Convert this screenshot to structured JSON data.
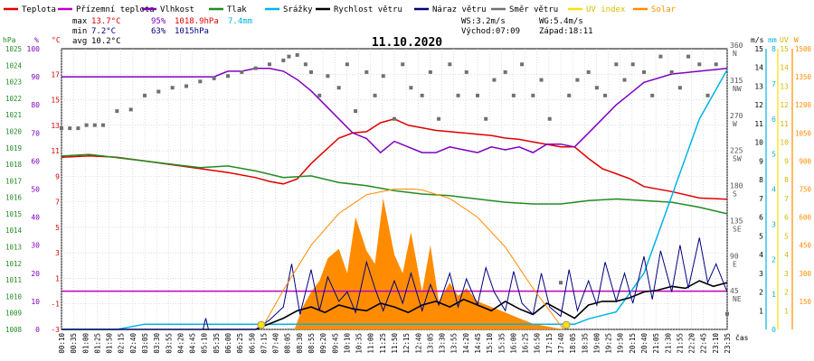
{
  "legend": [
    {
      "label": "Teplota",
      "color": "#e00000"
    },
    {
      "label": "Přízemní teplota",
      "color": "#c000c0"
    },
    {
      "label": "Vlhkost",
      "color": "#8000c0"
    },
    {
      "label": "Tlak",
      "color": "#228b22"
    },
    {
      "label": "Srážky",
      "color": "#00b4e6"
    },
    {
      "label": "Rychlost větru",
      "color": "#000000"
    },
    {
      "label": "Náraz větru",
      "color": "#000080"
    },
    {
      "label": "Směr větru",
      "color": "#707070"
    },
    {
      "label": "UV index",
      "color": "#ffe000"
    },
    {
      "label": "Solar",
      "color": "#ff8c00"
    }
  ],
  "stats": {
    "max_label": "max",
    "max_temp": "13.7°C",
    "max_hum": "95%",
    "max_press": "1018.9hPa",
    "max_rain": "7.4mm",
    "min_label": "min",
    "min_temp": "7.2°C",
    "min_hum": "63%",
    "min_press": "1015hPa",
    "avg_label": "avg",
    "avg_temp": "10.2°C",
    "ws": "WS:3.2m/s",
    "wg": "WG:5.4m/s",
    "sunrise": "Východ:07:09",
    "sunset": "Západ:18:11"
  },
  "colors": {
    "temp": "#e00000",
    "dew": "#c000c0",
    "hum": "#8000c0",
    "press": "#228b22",
    "rain": "#00b4e6",
    "wind": "#000000",
    "gust": "#000080",
    "dir": "#707070",
    "uv": "#ffe000",
    "solar": "#ff8c00",
    "grid": "#c8c8c8"
  },
  "chart_data": {
    "type": "line",
    "title": "11.10.2020",
    "xlabel": "čas",
    "x_ticks": [
      "00:10",
      "00:35",
      "01:00",
      "01:25",
      "01:50",
      "02:15",
      "02:40",
      "03:05",
      "03:30",
      "03:55",
      "04:20",
      "04:45",
      "05:10",
      "05:35",
      "06:00",
      "06:25",
      "06:50",
      "07:15",
      "07:40",
      "08:05",
      "08:30",
      "08:55",
      "09:20",
      "09:45",
      "10:10",
      "10:35",
      "11:00",
      "11:25",
      "11:50",
      "12:15",
      "12:40",
      "13:05",
      "13:30",
      "13:55",
      "14:20",
      "14:45",
      "15:10",
      "15:35",
      "16:00",
      "16:25",
      "16:50",
      "17:15",
      "17:40",
      "18:05",
      "18:35",
      "19:00",
      "19:25",
      "19:50",
      "20:15",
      "20:40",
      "21:05",
      "21:30",
      "21:55",
      "22:20",
      "22:45",
      "23:10",
      "23:35"
    ],
    "x_range_hours": [
      0,
      24
    ],
    "axes": {
      "pressure": {
        "label": "hPa",
        "range": [
          1008,
          1025
        ],
        "ticks": [
          1008,
          1009,
          1010,
          1011,
          1012,
          1013,
          1014,
          1015,
          1016,
          1017,
          1018,
          1019,
          1020,
          1021,
          1022,
          1023,
          1024,
          1025
        ]
      },
      "humidity": {
        "label": "%",
        "range": [
          0,
          100
        ],
        "ticks": [
          0,
          10,
          20,
          30,
          40,
          50,
          60,
          70,
          80,
          90,
          100
        ]
      },
      "temperature": {
        "label": "°C",
        "range": [
          -3,
          19
        ],
        "ticks": [
          -3,
          -1,
          1,
          3,
          5,
          7,
          9,
          11,
          13,
          15,
          17
        ]
      },
      "direction": {
        "ticks": [
          "45 NE",
          "90 E",
          "135 SE",
          "180 S",
          "225 SW",
          "270 W",
          "315 NW",
          "360 N"
        ],
        "range": [
          0,
          360
        ]
      },
      "wind": {
        "label": "m/s",
        "range": [
          0,
          15
        ],
        "ticks": [
          1,
          2,
          3,
          4,
          5,
          6,
          7,
          8,
          9,
          10,
          11,
          12,
          13,
          14,
          15
        ]
      },
      "rain": {
        "label": "mm",
        "range": [
          0,
          8
        ],
        "ticks": [
          0,
          1,
          2,
          3,
          4,
          5,
          6,
          7,
          8
        ]
      },
      "uv": {
        "label": "UV",
        "range": [
          0,
          15
        ],
        "ticks": [
          1,
          2,
          3,
          4,
          5,
          6,
          7,
          8,
          9,
          10,
          11,
          12,
          13,
          14,
          15
        ]
      },
      "solar": {
        "label": "W",
        "range": [
          0,
          1500
        ],
        "ticks": [
          150,
          300,
          450,
          600,
          750,
          900,
          1050,
          1200,
          1350,
          1500
        ]
      }
    },
    "series": [
      {
        "name": "Teplota",
        "axis": "temperature",
        "x": [
          0,
          1,
          2,
          3,
          4,
          5,
          6,
          7,
          7.5,
          8,
          8.5,
          9,
          9.5,
          10,
          10.5,
          11,
          11.5,
          12,
          12.5,
          13,
          13.5,
          14,
          14.5,
          15,
          15.5,
          16,
          16.5,
          17,
          17.5,
          18,
          18.5,
          19,
          19.5,
          20,
          20.5,
          21,
          22,
          23,
          24
        ],
        "y": [
          10.5,
          10.6,
          10.5,
          10.2,
          9.9,
          9.6,
          9.3,
          8.9,
          8.6,
          8.4,
          8.8,
          10.0,
          11.0,
          12.0,
          12.4,
          12.5,
          13.2,
          13.5,
          13.0,
          12.8,
          12.6,
          12.5,
          12.4,
          12.3,
          12.2,
          12.0,
          11.9,
          11.7,
          11.5,
          11.3,
          11.3,
          10.4,
          9.6,
          9.2,
          8.8,
          8.2,
          7.8,
          7.3,
          7.2
        ]
      },
      {
        "name": "Přízemní teplota",
        "axis": "temperature",
        "x": [
          0,
          24
        ],
        "y": [
          0,
          0
        ]
      },
      {
        "name": "Vlhkost",
        "axis": "humidity",
        "x": [
          0,
          1,
          2,
          3,
          4,
          5,
          5.5,
          6,
          6.5,
          7,
          7.5,
          8,
          8.5,
          9,
          9.5,
          10,
          10.5,
          11,
          11.5,
          12,
          12.5,
          13,
          13.5,
          14,
          14.5,
          15,
          15.5,
          16,
          16.5,
          17,
          17.5,
          18,
          18.5,
          19,
          19.5,
          20,
          20.5,
          21,
          22,
          23,
          24
        ],
        "y": [
          90,
          90,
          90,
          90,
          90,
          90,
          90,
          92,
          92,
          93,
          93,
          92,
          89,
          85,
          80,
          75,
          70,
          68,
          63,
          67,
          65,
          63,
          63,
          65,
          64,
          63,
          65,
          64,
          65,
          63,
          66,
          66,
          65,
          70,
          75,
          80,
          84,
          88,
          91,
          92,
          93
        ]
      },
      {
        "name": "Tlak",
        "axis": "pressure",
        "x": [
          0,
          1,
          2,
          3,
          4,
          5,
          6,
          7,
          8,
          9,
          10,
          11,
          12,
          13,
          14,
          15,
          16,
          17,
          18,
          19,
          20,
          21,
          22,
          23,
          24
        ],
        "y": [
          1018.5,
          1018.6,
          1018.4,
          1018.2,
          1018.0,
          1017.8,
          1017.9,
          1017.6,
          1017.2,
          1017.3,
          1016.9,
          1016.7,
          1016.4,
          1016.2,
          1016.1,
          1015.9,
          1015.7,
          1015.6,
          1015.6,
          1015.8,
          1015.9,
          1015.8,
          1015.7,
          1015.4,
          1015.0
        ]
      },
      {
        "name": "Srážky",
        "axis": "rain",
        "x": [
          0,
          2,
          3,
          4,
          18,
          18.5,
          19,
          20,
          21,
          22,
          23,
          24
        ],
        "y": [
          0,
          0,
          0.15,
          0.15,
          0.15,
          0.15,
          0.3,
          0.5,
          1.6,
          3.8,
          6.0,
          7.4
        ]
      },
      {
        "name": "Rychlost větru",
        "axis": "wind",
        "x": [
          0,
          7,
          7.5,
          8,
          8.5,
          9,
          9.5,
          10,
          10.5,
          11,
          11.5,
          12,
          12.5,
          13,
          13.5,
          14,
          14.5,
          15,
          15.5,
          16,
          16.5,
          17,
          17.5,
          18,
          18.5,
          19,
          19.5,
          20,
          20.5,
          21,
          21.5,
          22,
          22.5,
          23,
          23.5,
          24
        ],
        "y": [
          0,
          0,
          0.3,
          0.6,
          1.0,
          1.2,
          0.9,
          1.3,
          1.1,
          1.0,
          1.4,
          1.2,
          0.9,
          1.3,
          1.5,
          1.2,
          1.6,
          1.3,
          1.0,
          1.5,
          1.1,
          0.8,
          1.4,
          1.0,
          0.6,
          1.3,
          1.5,
          1.5,
          1.7,
          2.0,
          2.1,
          2.3,
          2.2,
          2.6,
          2.3,
          2.5
        ]
      },
      {
        "name": "Náraz větru",
        "axis": "wind",
        "x": [
          0,
          5.1,
          5.2,
          5.3,
          7,
          7.5,
          8,
          8.3,
          8.6,
          9,
          9.3,
          9.6,
          10,
          10.3,
          10.6,
          11,
          11.3,
          11.6,
          12,
          12.3,
          12.6,
          13,
          13.3,
          13.6,
          14,
          14.3,
          14.6,
          15,
          15.3,
          15.6,
          16,
          16.3,
          16.6,
          17,
          17.3,
          17.6,
          18,
          18.3,
          18.6,
          19,
          19.3,
          19.6,
          20,
          20.3,
          20.6,
          21,
          21.3,
          21.6,
          22,
          22.3,
          22.6,
          23,
          23.3,
          23.6,
          24
        ],
        "y": [
          0,
          0,
          0.6,
          0,
          0,
          0.5,
          1.2,
          3.5,
          0.8,
          3.2,
          1.0,
          2.8,
          1.5,
          2.0,
          0.9,
          3.6,
          2.2,
          1.0,
          2.6,
          1.4,
          3.0,
          1.0,
          2.4,
          1.3,
          3.0,
          1.2,
          2.7,
          1.3,
          3.3,
          2.0,
          1.0,
          3.1,
          1.4,
          0.8,
          3.0,
          1.2,
          0.7,
          3.2,
          1.0,
          2.6,
          1.3,
          3.6,
          1.5,
          3.0,
          1.4,
          3.9,
          1.6,
          4.2,
          2.0,
          4.5,
          2.2,
          4.9,
          2.5,
          3.5,
          2.0
        ]
      },
      {
        "name": "Solar",
        "axis": "solar",
        "x": [
          7.2,
          8.4,
          8.7,
          9,
          9.3,
          9.6,
          10,
          10.3,
          10.6,
          11,
          11.3,
          11.6,
          12,
          12.3,
          12.6,
          13,
          13.3,
          13.6,
          14,
          14.3,
          14.6,
          15,
          15.5,
          16,
          16.5,
          17,
          18.1
        ],
        "y": [
          0,
          0,
          120,
          200,
          260,
          380,
          430,
          300,
          600,
          420,
          350,
          700,
          400,
          300,
          520,
          200,
          450,
          150,
          250,
          180,
          220,
          150,
          120,
          90,
          60,
          30,
          0
        ]
      },
      {
        "name": "Solar max",
        "axis": "solar",
        "x": [
          7.2,
          8,
          9,
          10,
          11,
          12,
          12.7,
          13,
          14,
          15,
          16,
          17,
          18.1
        ],
        "y": [
          0,
          210,
          450,
          620,
          720,
          750,
          750,
          745,
          700,
          600,
          440,
          220,
          0
        ]
      }
    ],
    "wind_direction_deg": {
      "x": [
        0,
        0.3,
        0.6,
        0.9,
        1.2,
        1.5,
        2,
        2.5,
        3,
        3.5,
        4,
        4.5,
        5,
        5.5,
        6,
        6.5,
        7,
        7.5,
        8,
        8.2,
        8.5,
        8.8,
        9,
        9.3,
        9.6,
        10,
        10.3,
        10.6,
        11,
        11.3,
        11.6,
        12,
        12.3,
        12.6,
        13,
        13.3,
        13.6,
        14,
        14.3,
        14.6,
        15,
        15.3,
        15.6,
        16,
        16.3,
        16.6,
        17,
        17.3,
        17.6,
        18,
        18.3,
        18.6,
        19,
        19.3,
        19.6,
        20,
        20.3,
        20.6,
        21,
        21.3,
        21.6,
        22,
        22.3,
        22.6,
        23,
        23.3,
        23.6,
        24
      ],
      "y": [
        258,
        258,
        258,
        262,
        262,
        262,
        280,
        282,
        300,
        305,
        310,
        312,
        318,
        322,
        325,
        330,
        335,
        340,
        345,
        350,
        352,
        340,
        330,
        300,
        325,
        310,
        340,
        280,
        330,
        300,
        325,
        270,
        340,
        310,
        300,
        330,
        270,
        340,
        300,
        330,
        300,
        270,
        320,
        330,
        300,
        340,
        300,
        320,
        270,
        60,
        300,
        320,
        330,
        310,
        300,
        340,
        320,
        340,
        330,
        300,
        350,
        330,
        310,
        350,
        340,
        300,
        340,
        20
      ]
    },
    "uv_markers": {
      "x": [
        7.2,
        18.2
      ],
      "y": [
        0,
        0
      ]
    }
  }
}
